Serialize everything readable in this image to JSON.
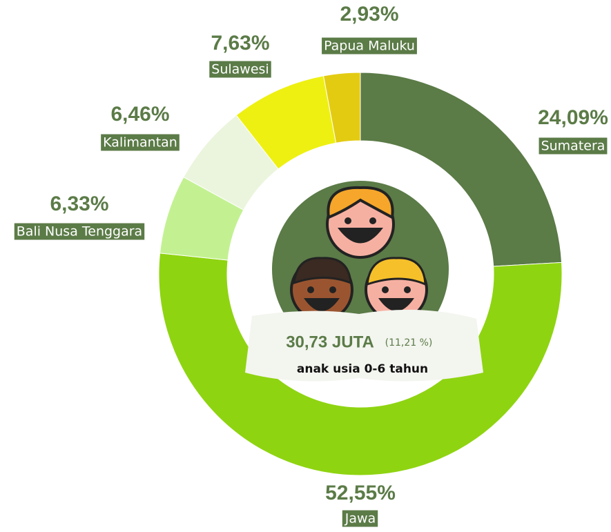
{
  "chart_data": {
    "type": "donut",
    "categories": [
      "Sumatera",
      "Jawa",
      "Bali Nusa Tenggara",
      "Kalimantan",
      "Sulawesi",
      "Papua Maluku"
    ],
    "values": [
      24.09,
      52.55,
      6.33,
      6.46,
      7.63,
      2.93
    ],
    "value_labels": [
      "24,09%",
      "52,55%",
      "6,33%",
      "6,46%",
      "7,63%",
      "2,93%"
    ],
    "colors": [
      "#5b7b47",
      "#8fd411",
      "#c3f192",
      "#ebf5dd",
      "#eef012",
      "#e3cb12"
    ],
    "center_total": "30,73 JUTA",
    "center_share": "(11,21 %)",
    "center_caption": "anak usia 0-6 tahun"
  }
}
